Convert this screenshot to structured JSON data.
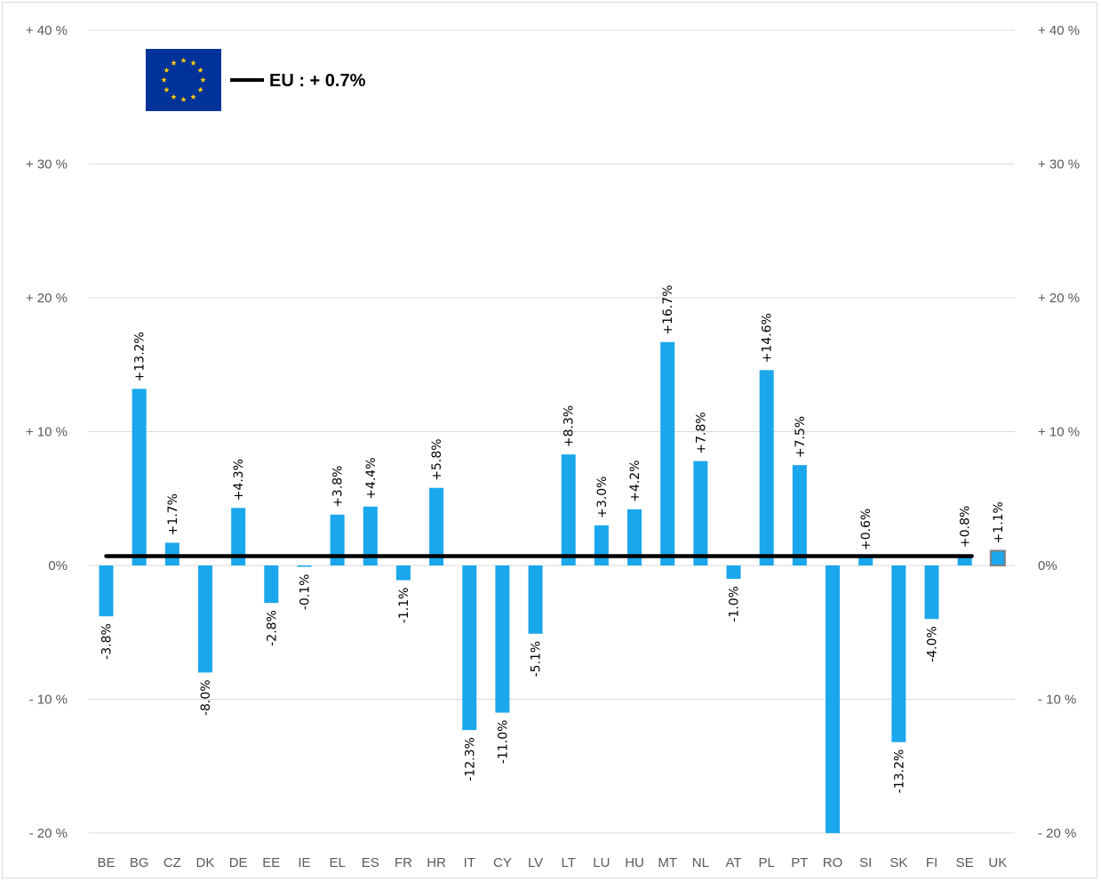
{
  "chart_data": {
    "type": "bar",
    "categories": [
      "BE",
      "BG",
      "CZ",
      "DK",
      "DE",
      "EE",
      "IE",
      "EL",
      "ES",
      "FR",
      "HR",
      "IT",
      "CY",
      "LV",
      "LT",
      "LU",
      "HU",
      "MT",
      "NL",
      "AT",
      "PL",
      "PT",
      "RO",
      "SI",
      "SK",
      "FI",
      "SE",
      "UK"
    ],
    "values": [
      -3.8,
      13.2,
      1.7,
      -8.0,
      4.3,
      -2.8,
      -0.1,
      3.8,
      4.4,
      -1.1,
      5.8,
      -12.3,
      -11.0,
      -5.1,
      8.3,
      3.0,
      4.2,
      16.7,
      7.8,
      -1.0,
      14.6,
      7.5,
      -20.0,
      0.6,
      -13.2,
      -4.0,
      0.8,
      1.1
    ],
    "data_labels": [
      "-3.8%",
      "+13.2%",
      "+1.7%",
      "-8.0%",
      "+4.3%",
      "-2.8%",
      "-0.1%",
      "+3.8%",
      "+4.4%",
      "-1.1%",
      "+5.8%",
      "-12.3%",
      "-11.0%",
      "-5.1%",
      "+8.3%",
      "+3.0%",
      "+4.2%",
      "+16.7%",
      "+7.8%",
      "-1.0%",
      "+14.6%",
      "+7.5%",
      "",
      "+0.6%",
      "-13.2%",
      "-4.0%",
      "+0.8%",
      "+1.1%"
    ],
    "reference_line": {
      "label": "EU :  + 0.7%",
      "value": 0.7
    },
    "ylim": [
      -20,
      40
    ],
    "y_ticks": [
      40,
      30,
      20,
      10,
      0,
      -10,
      -20
    ],
    "y_tick_labels": [
      "+ 40 %",
      "+ 30 %",
      "+ 20 %",
      "+ 10 %",
      "0%",
      "- 10 %",
      "- 20 %"
    ],
    "grid": true,
    "legend_position": "top-left",
    "colors": {
      "bar": "#1aa7ec",
      "bar_highlight": "#7f7f7f",
      "eu_line": "#000000",
      "flag_blue": "#003399",
      "flag_stars": "#ffcc00",
      "grid": "#d9d9d9"
    }
  }
}
